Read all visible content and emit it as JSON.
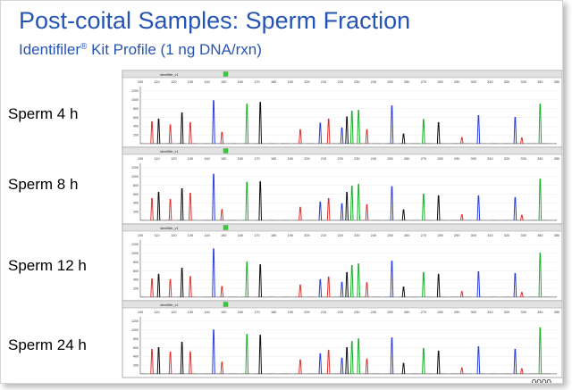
{
  "slide": {
    "title": "Post-coital Samples: Sperm Fraction",
    "subtitle_brand": "Identifiler",
    "subtitle_mark": "®",
    "subtitle_rest": " Kit Profile (1 ng DNA/rxn)",
    "corner_text": "0000"
  },
  "colors": {
    "title": "#2554b5",
    "blue": "#2b3ee0",
    "green": "#19b02a",
    "black": "#111111",
    "red": "#e0332f",
    "header_bg": "#e2e2e2",
    "plot_bg": "#ffffff"
  },
  "chart_data": {
    "type": "line",
    "x_ticks": [
      "100",
      "110",
      "120",
      "130",
      "140",
      "150",
      "160",
      "170",
      "180",
      "190",
      "200",
      "210",
      "220",
      "230",
      "240",
      "250",
      "260",
      "270",
      "280",
      "290",
      "300",
      "310",
      "320",
      "330",
      "340",
      "350"
    ],
    "y_ticks": [
      "1200",
      "1000",
      "800",
      "600",
      "400",
      "200"
    ],
    "ylim": [
      0,
      1300
    ],
    "panel_header_label": "Identifiler_v1",
    "panels": [
      {
        "label": "Sperm 4 h",
        "peaks": [
          {
            "c": "red",
            "x": 107,
            "h": 500
          },
          {
            "c": "black",
            "x": 111,
            "h": 560
          },
          {
            "c": "red",
            "x": 118,
            "h": 430
          },
          {
            "c": "black",
            "x": 125,
            "h": 700
          },
          {
            "c": "red",
            "x": 130,
            "h": 480
          },
          {
            "c": "blue",
            "x": 144,
            "h": 980
          },
          {
            "c": "red",
            "x": 149,
            "h": 260
          },
          {
            "c": "green",
            "x": 164,
            "h": 900
          },
          {
            "c": "black",
            "x": 172,
            "h": 940
          },
          {
            "c": "red",
            "x": 196,
            "h": 320
          },
          {
            "c": "blue",
            "x": 208,
            "h": 470
          },
          {
            "c": "red",
            "x": 213,
            "h": 560
          },
          {
            "c": "blue",
            "x": 221,
            "h": 360
          },
          {
            "c": "black",
            "x": 224,
            "h": 610
          },
          {
            "c": "green",
            "x": 227,
            "h": 740
          },
          {
            "c": "green",
            "x": 231,
            "h": 760
          },
          {
            "c": "red",
            "x": 236,
            "h": 320
          },
          {
            "c": "blue",
            "x": 251,
            "h": 860
          },
          {
            "c": "black",
            "x": 258,
            "h": 220
          },
          {
            "c": "green",
            "x": 270,
            "h": 550
          },
          {
            "c": "black",
            "x": 279,
            "h": 480
          },
          {
            "c": "red",
            "x": 293,
            "h": 140
          },
          {
            "c": "blue",
            "x": 303,
            "h": 640
          },
          {
            "c": "blue",
            "x": 325,
            "h": 600
          },
          {
            "c": "green",
            "x": 340,
            "h": 900
          },
          {
            "c": "red",
            "x": 329,
            "h": 130
          }
        ]
      },
      {
        "label": "Sperm 8 h",
        "peaks": [
          {
            "c": "red",
            "x": 107,
            "h": 500
          },
          {
            "c": "black",
            "x": 111,
            "h": 640
          },
          {
            "c": "red",
            "x": 118,
            "h": 480
          },
          {
            "c": "black",
            "x": 125,
            "h": 720
          },
          {
            "c": "red",
            "x": 130,
            "h": 620
          },
          {
            "c": "blue",
            "x": 144,
            "h": 1050
          },
          {
            "c": "red",
            "x": 149,
            "h": 250
          },
          {
            "c": "green",
            "x": 164,
            "h": 870
          },
          {
            "c": "black",
            "x": 172,
            "h": 880
          },
          {
            "c": "red",
            "x": 196,
            "h": 300
          },
          {
            "c": "blue",
            "x": 208,
            "h": 420
          },
          {
            "c": "red",
            "x": 213,
            "h": 500
          },
          {
            "c": "blue",
            "x": 221,
            "h": 380
          },
          {
            "c": "black",
            "x": 224,
            "h": 640
          },
          {
            "c": "green",
            "x": 227,
            "h": 780
          },
          {
            "c": "green",
            "x": 231,
            "h": 820
          },
          {
            "c": "red",
            "x": 236,
            "h": 360
          },
          {
            "c": "blue",
            "x": 251,
            "h": 770
          },
          {
            "c": "black",
            "x": 258,
            "h": 240
          },
          {
            "c": "green",
            "x": 270,
            "h": 600
          },
          {
            "c": "black",
            "x": 279,
            "h": 560
          },
          {
            "c": "red",
            "x": 293,
            "h": 130
          },
          {
            "c": "blue",
            "x": 303,
            "h": 560
          },
          {
            "c": "blue",
            "x": 325,
            "h": 520
          },
          {
            "c": "green",
            "x": 340,
            "h": 940
          },
          {
            "c": "red",
            "x": 329,
            "h": 120
          }
        ]
      },
      {
        "label": "Sperm 12 h",
        "peaks": [
          {
            "c": "red",
            "x": 107,
            "h": 420
          },
          {
            "c": "black",
            "x": 111,
            "h": 520
          },
          {
            "c": "red",
            "x": 118,
            "h": 400
          },
          {
            "c": "black",
            "x": 125,
            "h": 660
          },
          {
            "c": "red",
            "x": 130,
            "h": 470
          },
          {
            "c": "blue",
            "x": 144,
            "h": 1100
          },
          {
            "c": "red",
            "x": 149,
            "h": 240
          },
          {
            "c": "green",
            "x": 164,
            "h": 800
          },
          {
            "c": "black",
            "x": 172,
            "h": 740
          },
          {
            "c": "red",
            "x": 196,
            "h": 280
          },
          {
            "c": "blue",
            "x": 208,
            "h": 400
          },
          {
            "c": "red",
            "x": 213,
            "h": 460
          },
          {
            "c": "blue",
            "x": 221,
            "h": 340
          },
          {
            "c": "black",
            "x": 224,
            "h": 560
          },
          {
            "c": "green",
            "x": 227,
            "h": 720
          },
          {
            "c": "green",
            "x": 231,
            "h": 760
          },
          {
            "c": "red",
            "x": 236,
            "h": 330
          },
          {
            "c": "blue",
            "x": 251,
            "h": 820
          },
          {
            "c": "black",
            "x": 258,
            "h": 230
          },
          {
            "c": "green",
            "x": 270,
            "h": 560
          },
          {
            "c": "black",
            "x": 279,
            "h": 520
          },
          {
            "c": "red",
            "x": 293,
            "h": 130
          },
          {
            "c": "blue",
            "x": 303,
            "h": 580
          },
          {
            "c": "blue",
            "x": 325,
            "h": 540
          },
          {
            "c": "green",
            "x": 340,
            "h": 1000
          },
          {
            "c": "red",
            "x": 329,
            "h": 110
          }
        ]
      },
      {
        "label": "Sperm 24 h",
        "peaks": [
          {
            "c": "red",
            "x": 107,
            "h": 560
          },
          {
            "c": "black",
            "x": 111,
            "h": 600
          },
          {
            "c": "red",
            "x": 118,
            "h": 500
          },
          {
            "c": "black",
            "x": 125,
            "h": 720
          },
          {
            "c": "red",
            "x": 130,
            "h": 500
          },
          {
            "c": "blue",
            "x": 144,
            "h": 1000
          },
          {
            "c": "red",
            "x": 149,
            "h": 270
          },
          {
            "c": "green",
            "x": 164,
            "h": 900
          },
          {
            "c": "black",
            "x": 172,
            "h": 880
          },
          {
            "c": "red",
            "x": 196,
            "h": 320
          },
          {
            "c": "blue",
            "x": 208,
            "h": 460
          },
          {
            "c": "red",
            "x": 213,
            "h": 540
          },
          {
            "c": "blue",
            "x": 221,
            "h": 360
          },
          {
            "c": "black",
            "x": 224,
            "h": 600
          },
          {
            "c": "green",
            "x": 227,
            "h": 740
          },
          {
            "c": "green",
            "x": 231,
            "h": 800
          },
          {
            "c": "red",
            "x": 236,
            "h": 340
          },
          {
            "c": "blue",
            "x": 251,
            "h": 820
          },
          {
            "c": "black",
            "x": 258,
            "h": 240
          },
          {
            "c": "green",
            "x": 270,
            "h": 580
          },
          {
            "c": "black",
            "x": 279,
            "h": 520
          },
          {
            "c": "red",
            "x": 293,
            "h": 140
          },
          {
            "c": "blue",
            "x": 303,
            "h": 620
          },
          {
            "c": "blue",
            "x": 325,
            "h": 560
          },
          {
            "c": "green",
            "x": 340,
            "h": 1050
          },
          {
            "c": "red",
            "x": 329,
            "h": 120
          }
        ]
      }
    ]
  }
}
